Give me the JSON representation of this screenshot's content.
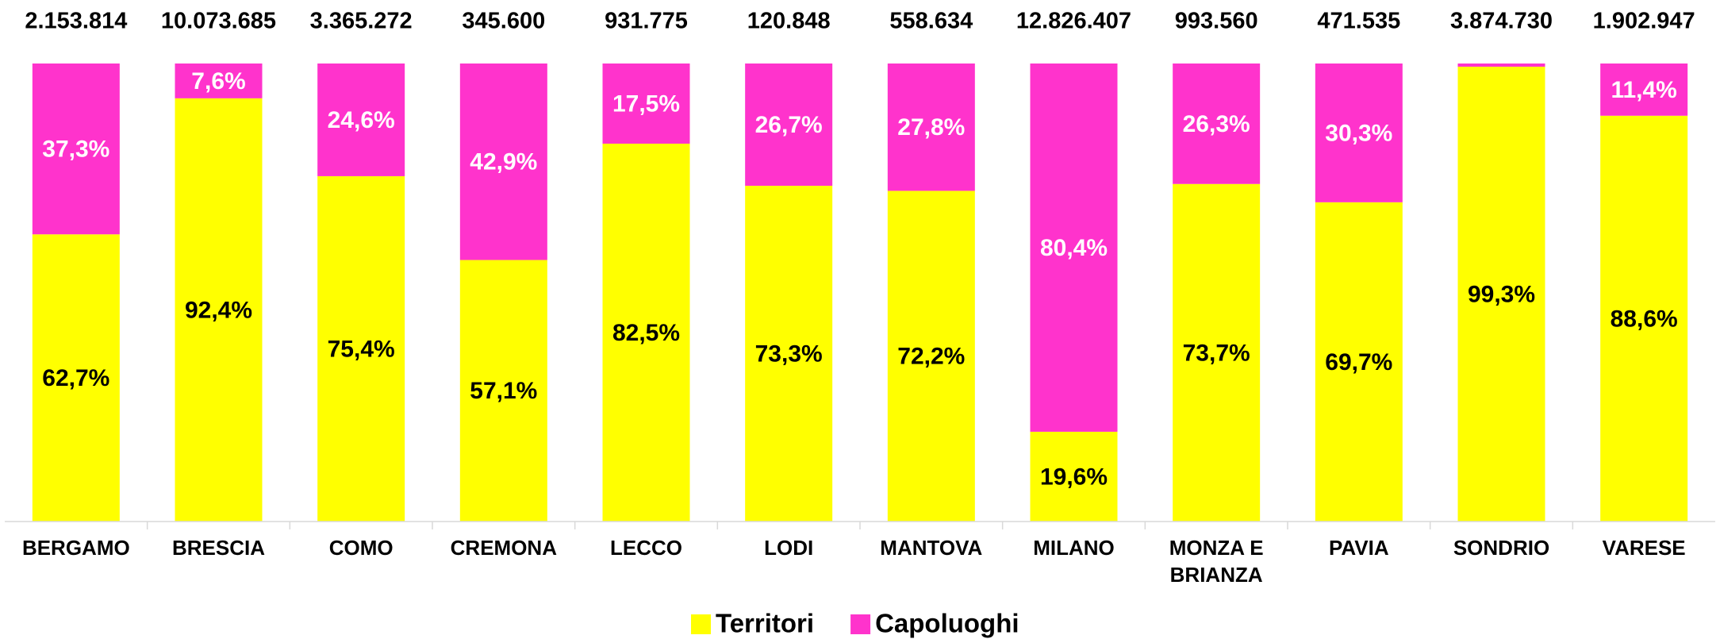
{
  "chart_data": {
    "type": "stacked_bar_100",
    "categories": [
      "BERGAMO",
      "BRESCIA",
      "COMO",
      "CREMONA",
      "LECCO",
      "LODI",
      "MANTOVA",
      "MILANO",
      "MONZA E BRIANZA",
      "PAVIA",
      "SONDRIO",
      "VARESE"
    ],
    "totals": {
      "values": [
        2153814,
        10073685,
        3365272,
        345600,
        931775,
        120848,
        558634,
        12826407,
        993560,
        471535,
        3874730,
        1902947
      ],
      "value_labels": [
        "2.153.814",
        "10.073.685",
        "3.365.272",
        "345.600",
        "931.775",
        "120.848",
        "558.634",
        "12.826.407",
        "993.560",
        "471.535",
        "3.874.730",
        "1.902.947"
      ]
    },
    "series": [
      {
        "name": "Territori",
        "color": "#ffff00",
        "label_color": "#000000",
        "values": [
          62.7,
          92.4,
          75.4,
          57.1,
          82.5,
          73.3,
          72.2,
          19.6,
          73.7,
          69.7,
          99.3,
          88.6
        ],
        "value_labels": [
          "62,7%",
          "92,4%",
          "75,4%",
          "57,1%",
          "82,5%",
          "73,3%",
          "72,2%",
          "19,6%",
          "73,7%",
          "69,7%",
          "99,3%",
          "88,6%"
        ]
      },
      {
        "name": "Capoluoghi",
        "color": "#ff33cc",
        "label_color": "#ffffff",
        "values": [
          37.3,
          7.6,
          24.6,
          42.9,
          17.5,
          26.7,
          27.8,
          80.4,
          26.3,
          30.3,
          0.7,
          11.4
        ],
        "value_labels": [
          "37,3%",
          "7,6%",
          "24,6%",
          "42,9%",
          "17,5%",
          "26,7%",
          "27,8%",
          "80,4%",
          "26,3%",
          "30,3%",
          null,
          "11,4%"
        ]
      }
    ],
    "ylim": [
      0,
      100
    ],
    "legend": "bottom"
  }
}
